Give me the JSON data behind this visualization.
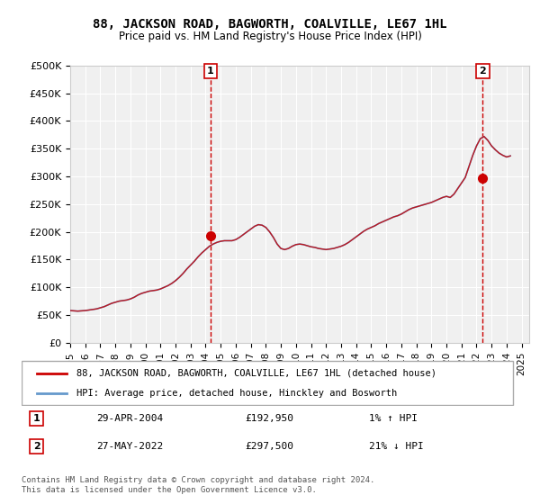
{
  "title": "88, JACKSON ROAD, BAGWORTH, COALVILLE, LE67 1HL",
  "subtitle": "Price paid vs. HM Land Registry's House Price Index (HPI)",
  "ylabel_ticks": [
    "£0",
    "£50K",
    "£100K",
    "£150K",
    "£200K",
    "£250K",
    "£300K",
    "£350K",
    "£400K",
    "£450K",
    "£500K"
  ],
  "ylim": [
    0,
    500000
  ],
  "ytick_values": [
    0,
    50000,
    100000,
    150000,
    200000,
    250000,
    300000,
    350000,
    400000,
    450000,
    500000
  ],
  "xlim_start": 1995.0,
  "xlim_end": 2025.5,
  "background_color": "#ffffff",
  "plot_bg_color": "#f0f0f0",
  "grid_color": "#ffffff",
  "red_line_color": "#cc0000",
  "blue_line_color": "#6699cc",
  "marker1_x": 2004.33,
  "marker1_y": 192950,
  "marker1_label": "1",
  "marker2_x": 2022.42,
  "marker2_y": 297500,
  "marker2_label": "2",
  "legend_line1": "88, JACKSON ROAD, BAGWORTH, COALVILLE, LE67 1HL (detached house)",
  "legend_line2": "HPI: Average price, detached house, Hinckley and Bosworth",
  "annotation1_num": "1",
  "annotation1_date": "29-APR-2004",
  "annotation1_price": "£192,950",
  "annotation1_hpi": "1% ↑ HPI",
  "annotation2_num": "2",
  "annotation2_date": "27-MAY-2022",
  "annotation2_price": "£297,500",
  "annotation2_hpi": "21% ↓ HPI",
  "footer": "Contains HM Land Registry data © Crown copyright and database right 2024.\nThis data is licensed under the Open Government Licence v3.0.",
  "hpi_data": {
    "years": [
      1995.0,
      1995.25,
      1995.5,
      1995.75,
      1996.0,
      1996.25,
      1996.5,
      1996.75,
      1997.0,
      1997.25,
      1997.5,
      1997.75,
      1998.0,
      1998.25,
      1998.5,
      1998.75,
      1999.0,
      1999.25,
      1999.5,
      1999.75,
      2000.0,
      2000.25,
      2000.5,
      2000.75,
      2001.0,
      2001.25,
      2001.5,
      2001.75,
      2002.0,
      2002.25,
      2002.5,
      2002.75,
      2003.0,
      2003.25,
      2003.5,
      2003.75,
      2004.0,
      2004.25,
      2004.5,
      2004.75,
      2005.0,
      2005.25,
      2005.5,
      2005.75,
      2006.0,
      2006.25,
      2006.5,
      2006.75,
      2007.0,
      2007.25,
      2007.5,
      2007.75,
      2008.0,
      2008.25,
      2008.5,
      2008.75,
      2009.0,
      2009.25,
      2009.5,
      2009.75,
      2010.0,
      2010.25,
      2010.5,
      2010.75,
      2011.0,
      2011.25,
      2011.5,
      2011.75,
      2012.0,
      2012.25,
      2012.5,
      2012.75,
      2013.0,
      2013.25,
      2013.5,
      2013.75,
      2014.0,
      2014.25,
      2014.5,
      2014.75,
      2015.0,
      2015.25,
      2015.5,
      2015.75,
      2016.0,
      2016.25,
      2016.5,
      2016.75,
      2017.0,
      2017.25,
      2017.5,
      2017.75,
      2018.0,
      2018.25,
      2018.5,
      2018.75,
      2019.0,
      2019.25,
      2019.5,
      2019.75,
      2020.0,
      2020.25,
      2020.5,
      2020.75,
      2021.0,
      2021.25,
      2021.5,
      2021.75,
      2022.0,
      2022.25,
      2022.5,
      2022.75,
      2023.0,
      2023.25,
      2023.5,
      2023.75,
      2024.0,
      2024.25
    ],
    "values": [
      58000,
      57500,
      57000,
      57500,
      58000,
      59000,
      60000,
      61000,
      63000,
      65000,
      68000,
      71000,
      73000,
      75000,
      76000,
      77000,
      79000,
      82000,
      86000,
      89000,
      91000,
      93000,
      94000,
      95000,
      97000,
      100000,
      103000,
      107000,
      112000,
      118000,
      125000,
      133000,
      140000,
      147000,
      155000,
      162000,
      168000,
      174000,
      178000,
      181000,
      183000,
      184000,
      184000,
      184000,
      186000,
      190000,
      195000,
      200000,
      205000,
      210000,
      213000,
      212000,
      208000,
      200000,
      190000,
      178000,
      170000,
      168000,
      170000,
      174000,
      177000,
      178000,
      177000,
      175000,
      173000,
      172000,
      170000,
      169000,
      168000,
      169000,
      170000,
      172000,
      174000,
      177000,
      181000,
      186000,
      191000,
      196000,
      201000,
      205000,
      208000,
      211000,
      215000,
      218000,
      221000,
      224000,
      227000,
      229000,
      232000,
      236000,
      240000,
      243000,
      245000,
      247000,
      249000,
      251000,
      253000,
      256000,
      259000,
      262000,
      264000,
      262000,
      268000,
      278000,
      288000,
      298000,
      318000,
      338000,
      355000,
      368000,
      372000,
      365000,
      355000,
      348000,
      342000,
      338000,
      335000,
      337000
    ]
  },
  "property_data": {
    "years": [
      2004.33,
      2022.42
    ],
    "values": [
      192950,
      297500
    ]
  }
}
